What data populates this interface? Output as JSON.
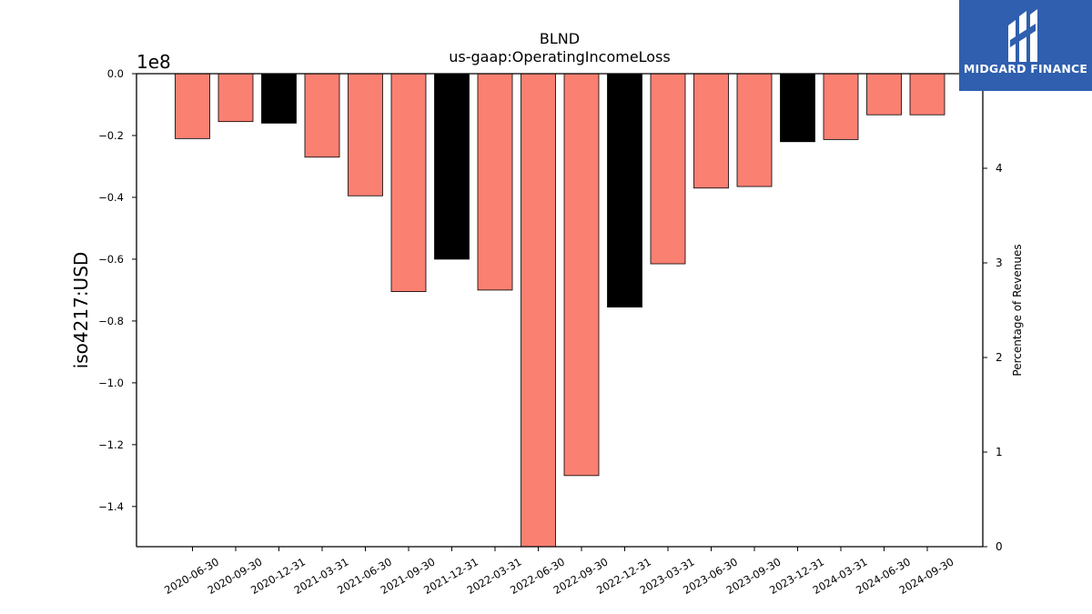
{
  "brand": {
    "name": "MIDGARD FINANCE",
    "colors": {
      "logo_bg": "#2f5fae",
      "logo_fg": "#ffffff"
    }
  },
  "chart_data": {
    "type": "bar",
    "title": "BLND",
    "subtitle": "us-gaap:OperatingIncomeLoss",
    "ylabel": "iso4217:USD",
    "y_offset_label": "1e8",
    "y2label": "Percentage of Revenues",
    "categories": [
      "2020-06-30",
      "2020-09-30",
      "2020-12-31",
      "2021-03-31",
      "2021-06-30",
      "2021-09-30",
      "2021-12-31",
      "2022-03-31",
      "2022-06-30",
      "2022-09-30",
      "2022-12-31",
      "2023-03-31",
      "2023-06-30",
      "2023-09-30",
      "2023-12-31",
      "2024-03-31",
      "2024-06-30",
      "2024-09-30"
    ],
    "values": [
      -21000000,
      -15500000,
      -16000000,
      -27000000,
      -39500000,
      -70500000,
      -60000000,
      -70000000,
      -153000000,
      -130000000,
      -75500000,
      -61500000,
      -37000000,
      -36500000,
      -22000000,
      -21300000,
      -13300000,
      -13300000
    ],
    "bar_colors": [
      "#fa8072",
      "#fa8072",
      "#000000",
      "#fa8072",
      "#fa8072",
      "#fa8072",
      "#000000",
      "#fa8072",
      "#fa8072",
      "#fa8072",
      "#000000",
      "#fa8072",
      "#fa8072",
      "#fa8072",
      "#000000",
      "#fa8072",
      "#fa8072",
      "#fa8072"
    ],
    "ylim": [
      -153000000,
      0
    ],
    "yticks": [
      0,
      -20000000,
      -40000000,
      -60000000,
      -80000000,
      -100000000,
      -120000000,
      -140000000
    ],
    "ytick_labels": [
      "0.0",
      "−0.2",
      "−0.4",
      "−0.6",
      "−0.8",
      "−1.0",
      "−1.2",
      "−1.4"
    ],
    "y2lim": [
      0,
      5
    ],
    "y2ticks": [
      0,
      1,
      2,
      3,
      4
    ],
    "y2tick_labels": [
      "0",
      "1",
      "2",
      "3",
      "4"
    ],
    "grid": false,
    "legend": "none"
  }
}
